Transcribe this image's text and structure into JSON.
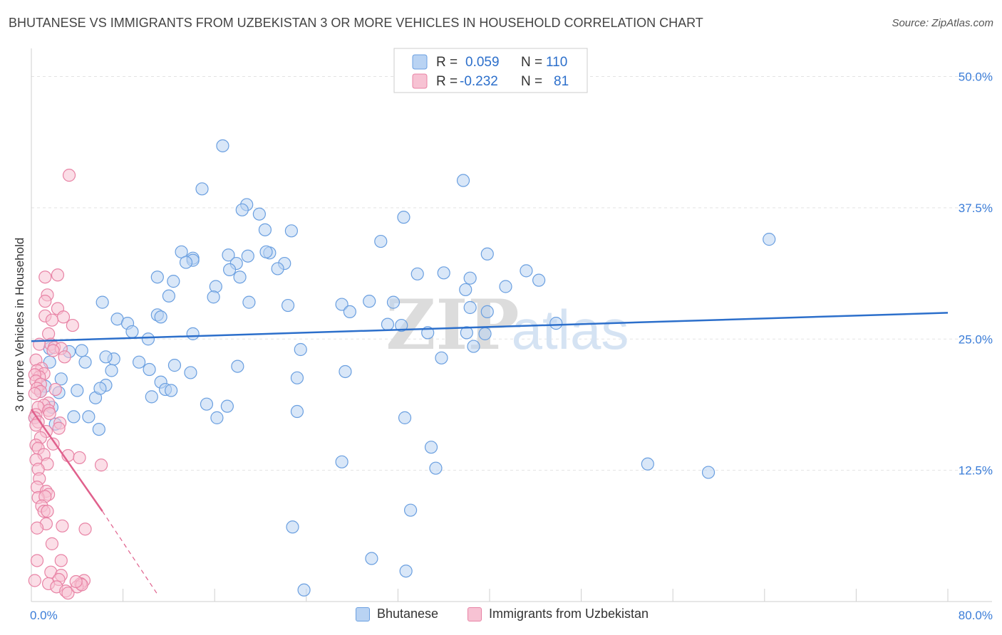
{
  "title": "BHUTANESE VS IMMIGRANTS FROM UZBEKISTAN 3 OR MORE VEHICLES IN HOUSEHOLD CORRELATION CHART",
  "source": "Source: ZipAtlas.com",
  "watermark": {
    "zip": "ZIP",
    "atlas": "atlas"
  },
  "chart_data": {
    "type": "scatter",
    "title": "BHUTANESE VS IMMIGRANTS FROM UZBEKISTAN 3 OR MORE VEHICLES IN HOUSEHOLD CORRELATION CHART",
    "ylabel": "3 or more Vehicles in Household",
    "xlim": [
      0,
      80
    ],
    "ylim": [
      0,
      52
    ],
    "x_tick_labels": [
      {
        "value": 0,
        "label": "0.0%"
      },
      {
        "value": 80,
        "label": "80.0%"
      }
    ],
    "y_tick_labels": [
      {
        "value": 12.5,
        "label": "12.5%"
      },
      {
        "value": 25,
        "label": "25.0%"
      },
      {
        "value": 37.5,
        "label": "37.5%"
      },
      {
        "value": 50,
        "label": "50.0%"
      }
    ],
    "grid": true,
    "legend": {
      "placement": "top-center",
      "entries": [
        {
          "r_label": "R =",
          "r_value": "0.059",
          "n_label": "N =",
          "n_value": "110"
        },
        {
          "r_label": "R =",
          "r_value": "-0.232",
          "n_label": "N =",
          "n_value": "81"
        }
      ]
    },
    "series": [
      {
        "name": "Bhutanese",
        "color": "#6a9fe0",
        "fill": "#b9d3f3",
        "trend": {
          "x": [
            0,
            80
          ],
          "y": [
            24.8,
            27.5
          ],
          "color": "#2c6fcb"
        },
        "points": [
          [
            16.7,
            43.4
          ],
          [
            14.9,
            39.3
          ],
          [
            37.7,
            40.1
          ],
          [
            18.8,
            37.8
          ],
          [
            18.4,
            37.3
          ],
          [
            19.9,
            36.9
          ],
          [
            32.5,
            36.6
          ],
          [
            20.4,
            35.4
          ],
          [
            22.7,
            35.3
          ],
          [
            30.5,
            34.3
          ],
          [
            64.4,
            34.5
          ],
          [
            13.1,
            33.3
          ],
          [
            20.8,
            33.2
          ],
          [
            14.1,
            32.7
          ],
          [
            17.2,
            33.0
          ],
          [
            18.9,
            32.9
          ],
          [
            17.9,
            32.2
          ],
          [
            14.1,
            32.5
          ],
          [
            22.1,
            32.2
          ],
          [
            21.5,
            31.7
          ],
          [
            13.5,
            32.3
          ],
          [
            20.5,
            33.3
          ],
          [
            39.8,
            33.1
          ],
          [
            17.3,
            31.6
          ],
          [
            11.0,
            30.9
          ],
          [
            18.2,
            30.9
          ],
          [
            16.1,
            30.0
          ],
          [
            12.4,
            30.5
          ],
          [
            36.0,
            31.3
          ],
          [
            33.7,
            31.2
          ],
          [
            38.3,
            30.8
          ],
          [
            43.2,
            31.5
          ],
          [
            44.3,
            30.6
          ],
          [
            15.9,
            29.0
          ],
          [
            41.4,
            30.0
          ],
          [
            12.0,
            29.1
          ],
          [
            37.9,
            29.7
          ],
          [
            29.5,
            28.6
          ],
          [
            31.6,
            28.5
          ],
          [
            6.2,
            28.5
          ],
          [
            19.0,
            28.5
          ],
          [
            22.4,
            28.2
          ],
          [
            27.1,
            28.3
          ],
          [
            11.0,
            27.3
          ],
          [
            38.3,
            28.0
          ],
          [
            27.8,
            27.6
          ],
          [
            39.8,
            27.6
          ],
          [
            7.5,
            26.9
          ],
          [
            11.3,
            27.1
          ],
          [
            8.4,
            26.5
          ],
          [
            31.1,
            26.4
          ],
          [
            45.8,
            26.5
          ],
          [
            32.3,
            26.3
          ],
          [
            14.1,
            25.5
          ],
          [
            38.0,
            25.6
          ],
          [
            34.6,
            25.6
          ],
          [
            39.6,
            25.5
          ],
          [
            10.2,
            25.0
          ],
          [
            1.6,
            24.1
          ],
          [
            23.5,
            24.0
          ],
          [
            38.6,
            24.3
          ],
          [
            4.4,
            23.9
          ],
          [
            3.3,
            23.8
          ],
          [
            7.2,
            23.1
          ],
          [
            6.5,
            23.3
          ],
          [
            1.6,
            22.8
          ],
          [
            4.7,
            22.8
          ],
          [
            9.4,
            22.8
          ],
          [
            12.5,
            22.5
          ],
          [
            10.3,
            22.1
          ],
          [
            7.0,
            22.0
          ],
          [
            13.9,
            21.8
          ],
          [
            27.4,
            21.9
          ],
          [
            23.2,
            21.3
          ],
          [
            2.6,
            21.2
          ],
          [
            1.2,
            20.5
          ],
          [
            11.3,
            20.9
          ],
          [
            6.5,
            20.6
          ],
          [
            0.8,
            20.0
          ],
          [
            2.4,
            19.9
          ],
          [
            4.0,
            20.1
          ],
          [
            11.7,
            20.2
          ],
          [
            12.2,
            20.1
          ],
          [
            10.5,
            19.5
          ],
          [
            5.6,
            19.4
          ],
          [
            15.3,
            18.8
          ],
          [
            17.1,
            18.6
          ],
          [
            1.8,
            18.5
          ],
          [
            23.2,
            18.1
          ],
          [
            0.3,
            17.5
          ],
          [
            3.7,
            17.6
          ],
          [
            5.0,
            17.6
          ],
          [
            16.2,
            17.5
          ],
          [
            32.6,
            17.5
          ],
          [
            2.1,
            16.9
          ],
          [
            5.9,
            16.4
          ],
          [
            34.9,
            14.7
          ],
          [
            27.1,
            13.3
          ],
          [
            35.3,
            12.7
          ],
          [
            53.8,
            13.1
          ],
          [
            59.1,
            12.3
          ],
          [
            33.1,
            8.7
          ],
          [
            22.8,
            7.1
          ],
          [
            29.7,
            4.1
          ],
          [
            32.7,
            2.9
          ],
          [
            23.8,
            1.1
          ],
          [
            35.8,
            23.2
          ],
          [
            6.0,
            20.3
          ],
          [
            8.8,
            25.7
          ],
          [
            18.0,
            22.4
          ]
        ]
      },
      {
        "name": "Immigrants from Uzbekistan",
        "color": "#e883a5",
        "fill": "#f7c2d3",
        "trend": {
          "x": [
            0,
            6.2
          ],
          "y": [
            18.3,
            8.6
          ],
          "dash_x": [
            6.2,
            11.0
          ],
          "dash_y": [
            8.6,
            0.7
          ],
          "color": "#e0608c"
        },
        "points": [
          [
            3.3,
            40.6
          ],
          [
            2.3,
            31.1
          ],
          [
            1.2,
            30.9
          ],
          [
            1.4,
            29.2
          ],
          [
            1.2,
            28.6
          ],
          [
            2.3,
            27.9
          ],
          [
            1.2,
            27.2
          ],
          [
            2.8,
            27.1
          ],
          [
            1.8,
            26.8
          ],
          [
            3.6,
            26.3
          ],
          [
            1.5,
            25.5
          ],
          [
            0.7,
            24.5
          ],
          [
            1.7,
            24.5
          ],
          [
            2.0,
            24.2
          ],
          [
            2.6,
            24.1
          ],
          [
            2.9,
            23.3
          ],
          [
            0.4,
            23.0
          ],
          [
            0.9,
            22.2
          ],
          [
            0.5,
            22.0
          ],
          [
            1.1,
            21.7
          ],
          [
            0.7,
            21.4
          ],
          [
            0.3,
            21.6
          ],
          [
            0.4,
            21.0
          ],
          [
            0.8,
            20.7
          ],
          [
            0.5,
            20.3
          ],
          [
            0.8,
            20.0
          ],
          [
            2.1,
            20.2
          ],
          [
            0.3,
            19.8
          ],
          [
            1.5,
            18.9
          ],
          [
            1.1,
            18.7
          ],
          [
            0.6,
            18.5
          ],
          [
            1.5,
            18.2
          ],
          [
            1.6,
            17.9
          ],
          [
            0.4,
            17.8
          ],
          [
            0.3,
            17.5
          ],
          [
            0.6,
            17.1
          ],
          [
            2.5,
            17.0
          ],
          [
            0.4,
            16.8
          ],
          [
            1.3,
            16.2
          ],
          [
            2.4,
            16.5
          ],
          [
            0.8,
            15.6
          ],
          [
            1.9,
            15.0
          ],
          [
            0.4,
            14.9
          ],
          [
            0.6,
            14.6
          ],
          [
            1.1,
            14.0
          ],
          [
            3.2,
            13.9
          ],
          [
            4.2,
            13.7
          ],
          [
            0.4,
            13.5
          ],
          [
            1.4,
            13.1
          ],
          [
            6.1,
            13.0
          ],
          [
            0.6,
            12.6
          ],
          [
            0.7,
            11.7
          ],
          [
            0.5,
            10.9
          ],
          [
            1.3,
            10.5
          ],
          [
            1.5,
            10.2
          ],
          [
            0.6,
            9.9
          ],
          [
            1.2,
            10.0
          ],
          [
            0.9,
            9.1
          ],
          [
            1.1,
            8.6
          ],
          [
            1.4,
            8.6
          ],
          [
            1.3,
            7.4
          ],
          [
            2.7,
            7.2
          ],
          [
            4.7,
            6.9
          ],
          [
            0.5,
            7.0
          ],
          [
            1.8,
            5.5
          ],
          [
            2.6,
            3.9
          ],
          [
            0.5,
            3.9
          ],
          [
            1.7,
            2.8
          ],
          [
            2.6,
            2.5
          ],
          [
            4.6,
            2.0
          ],
          [
            2.4,
            2.1
          ],
          [
            4.3,
            1.7
          ],
          [
            1.5,
            1.7
          ],
          [
            2.2,
            1.4
          ],
          [
            3.0,
            1.0
          ],
          [
            3.2,
            0.8
          ],
          [
            4.0,
            1.4
          ],
          [
            4.4,
            1.6
          ],
          [
            0.3,
            2.0
          ],
          [
            1.9,
            23.9
          ],
          [
            3.9,
            1.9
          ]
        ]
      }
    ]
  }
}
